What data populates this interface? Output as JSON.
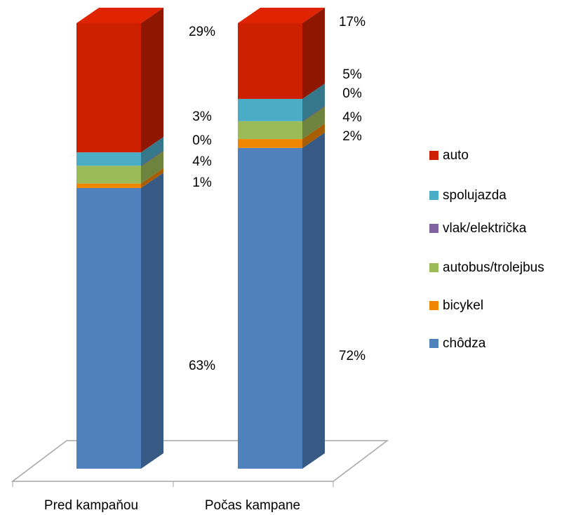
{
  "chart_data": {
    "type": "bar3d_stacked",
    "categories": [
      "Pred kampaňou",
      "Počas kampane"
    ],
    "series": [
      {
        "name": "chôdza",
        "color": "#4f81bd",
        "values": [
          63,
          72
        ],
        "value_labels": [
          "63%",
          "72%"
        ]
      },
      {
        "name": "bicykel",
        "color": "#f08500",
        "values": [
          1,
          2
        ],
        "value_labels": [
          "1%",
          "2%"
        ]
      },
      {
        "name": "autobus/trolejbus",
        "color": "#9bbb59",
        "values": [
          4,
          4
        ],
        "value_labels": [
          "4%",
          "4%"
        ]
      },
      {
        "name": "vlak/električka",
        "color": "#8064a2",
        "values": [
          0,
          0
        ],
        "value_labels": [
          "0%",
          "0%"
        ]
      },
      {
        "name": "spolujazda",
        "color": "#4bacc6",
        "values": [
          3,
          5
        ],
        "value_labels": [
          "3%",
          "5%"
        ]
      },
      {
        "name": "auto",
        "color": "#cc2000",
        "values": [
          29,
          17
        ],
        "value_labels": [
          "29%",
          "17%"
        ]
      }
    ]
  }
}
